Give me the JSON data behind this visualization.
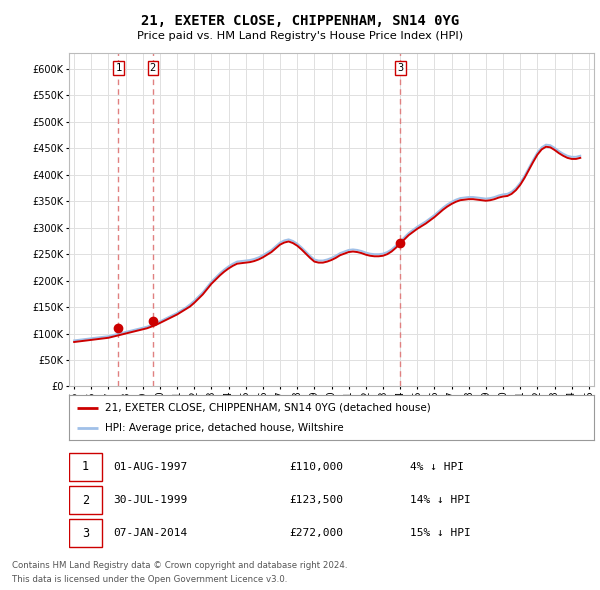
{
  "title": "21, EXETER CLOSE, CHIPPENHAM, SN14 0YG",
  "subtitle": "Price paid vs. HM Land Registry's House Price Index (HPI)",
  "legend_line1": "21, EXETER CLOSE, CHIPPENHAM, SN14 0YG (detached house)",
  "legend_line2": "HPI: Average price, detached house, Wiltshire",
  "footer1": "Contains HM Land Registry data © Crown copyright and database right 2024.",
  "footer2": "This data is licensed under the Open Government Licence v3.0.",
  "transactions": [
    {
      "num": 1,
      "date": "01-AUG-1997",
      "price": 110000,
      "pct": "4%",
      "dir": "↓",
      "year": 1997.58
    },
    {
      "num": 2,
      "date": "30-JUL-1999",
      "price": 123500,
      "pct": "14%",
      "dir": "↓",
      "year": 1999.58
    },
    {
      "num": 3,
      "date": "07-JAN-2014",
      "price": 272000,
      "pct": "15%",
      "dir": "↓",
      "year": 2014.02
    }
  ],
  "hpi_color": "#a0c0e8",
  "price_color": "#cc0000",
  "dashed_color": "#e08080",
  "background_color": "#ffffff",
  "grid_color": "#e0e0e0",
  "ylim": [
    0,
    630000
  ],
  "yticks": [
    0,
    50000,
    100000,
    150000,
    200000,
    250000,
    300000,
    350000,
    400000,
    450000,
    500000,
    550000,
    600000
  ],
  "hpi_data_years": [
    1995.0,
    1995.25,
    1995.5,
    1995.75,
    1996.0,
    1996.25,
    1996.5,
    1996.75,
    1997.0,
    1997.25,
    1997.5,
    1997.75,
    1998.0,
    1998.25,
    1998.5,
    1998.75,
    1999.0,
    1999.25,
    1999.5,
    1999.75,
    2000.0,
    2000.25,
    2000.5,
    2000.75,
    2001.0,
    2001.25,
    2001.5,
    2001.75,
    2002.0,
    2002.25,
    2002.5,
    2002.75,
    2003.0,
    2003.25,
    2003.5,
    2003.75,
    2004.0,
    2004.25,
    2004.5,
    2004.75,
    2005.0,
    2005.25,
    2005.5,
    2005.75,
    2006.0,
    2006.25,
    2006.5,
    2006.75,
    2007.0,
    2007.25,
    2007.5,
    2007.75,
    2008.0,
    2008.25,
    2008.5,
    2008.75,
    2009.0,
    2009.25,
    2009.5,
    2009.75,
    2010.0,
    2010.25,
    2010.5,
    2010.75,
    2011.0,
    2011.25,
    2011.5,
    2011.75,
    2012.0,
    2012.25,
    2012.5,
    2012.75,
    2013.0,
    2013.25,
    2013.5,
    2013.75,
    2014.0,
    2014.25,
    2014.5,
    2014.75,
    2015.0,
    2015.25,
    2015.5,
    2015.75,
    2016.0,
    2016.25,
    2016.5,
    2016.75,
    2017.0,
    2017.25,
    2017.5,
    2017.75,
    2018.0,
    2018.25,
    2018.5,
    2018.75,
    2019.0,
    2019.25,
    2019.5,
    2019.75,
    2020.0,
    2020.25,
    2020.5,
    2020.75,
    2021.0,
    2021.25,
    2021.5,
    2021.75,
    2022.0,
    2022.25,
    2022.5,
    2022.75,
    2023.0,
    2023.25,
    2023.5,
    2023.75,
    2024.0,
    2024.25,
    2024.5
  ],
  "hpi_data_values": [
    87000,
    88000,
    89000,
    90000,
    91000,
    92000,
    93000,
    94000,
    95000,
    97000,
    99000,
    101000,
    103000,
    105000,
    107000,
    109000,
    111000,
    113000,
    116000,
    119000,
    123000,
    127000,
    131000,
    135000,
    139000,
    144000,
    149000,
    155000,
    162000,
    170000,
    178000,
    188000,
    198000,
    206000,
    214000,
    221000,
    227000,
    232000,
    236000,
    237000,
    238000,
    239000,
    241000,
    244000,
    248000,
    253000,
    258000,
    265000,
    272000,
    276000,
    278000,
    275000,
    270000,
    263000,
    255000,
    247000,
    240000,
    238000,
    238000,
    240000,
    243000,
    247000,
    252000,
    255000,
    258000,
    259000,
    258000,
    256000,
    253000,
    251000,
    250000,
    250000,
    251000,
    254000,
    259000,
    266000,
    274000,
    282000,
    290000,
    296000,
    302000,
    307000,
    312000,
    318000,
    324000,
    331000,
    338000,
    344000,
    349000,
    353000,
    356000,
    357000,
    358000,
    358000,
    357000,
    356000,
    355000,
    356000,
    358000,
    361000,
    363000,
    364000,
    368000,
    375000,
    385000,
    398000,
    413000,
    428000,
    442000,
    452000,
    457000,
    456000,
    451000,
    445000,
    440000,
    436000,
    434000,
    434000,
    436000
  ],
  "price_line_years": [
    1995.0,
    1995.25,
    1995.5,
    1995.75,
    1996.0,
    1996.25,
    1996.5,
    1996.75,
    1997.0,
    1997.25,
    1997.5,
    1997.75,
    1998.0,
    1998.25,
    1998.5,
    1998.75,
    1999.0,
    1999.25,
    1999.5,
    1999.75,
    2000.0,
    2000.25,
    2000.5,
    2000.75,
    2001.0,
    2001.25,
    2001.5,
    2001.75,
    2002.0,
    2002.25,
    2002.5,
    2002.75,
    2003.0,
    2003.25,
    2003.5,
    2003.75,
    2004.0,
    2004.25,
    2004.5,
    2004.75,
    2005.0,
    2005.25,
    2005.5,
    2005.75,
    2006.0,
    2006.25,
    2006.5,
    2006.75,
    2007.0,
    2007.25,
    2007.5,
    2007.75,
    2008.0,
    2008.25,
    2008.5,
    2008.75,
    2009.0,
    2009.25,
    2009.5,
    2009.75,
    2010.0,
    2010.25,
    2010.5,
    2010.75,
    2011.0,
    2011.25,
    2011.5,
    2011.75,
    2012.0,
    2012.25,
    2012.5,
    2012.75,
    2013.0,
    2013.25,
    2013.5,
    2013.75,
    2014.0,
    2014.25,
    2014.5,
    2014.75,
    2015.0,
    2015.25,
    2015.5,
    2015.75,
    2016.0,
    2016.25,
    2016.5,
    2016.75,
    2017.0,
    2017.25,
    2017.5,
    2017.75,
    2018.0,
    2018.25,
    2018.5,
    2018.75,
    2019.0,
    2019.25,
    2019.5,
    2019.75,
    2020.0,
    2020.25,
    2020.5,
    2020.75,
    2021.0,
    2021.25,
    2021.5,
    2021.75,
    2022.0,
    2022.25,
    2022.5,
    2022.75,
    2023.0,
    2023.25,
    2023.5,
    2023.75,
    2024.0,
    2024.25,
    2024.5
  ],
  "price_line_values": [
    84000,
    85000,
    86000,
    87000,
    88000,
    89000,
    90000,
    91000,
    92000,
    94000,
    96000,
    98000,
    100000,
    102000,
    104000,
    106000,
    108000,
    110000,
    113000,
    116000,
    120000,
    124000,
    128000,
    132000,
    136000,
    141000,
    146000,
    151000,
    158000,
    166000,
    174000,
    184000,
    194000,
    202000,
    210000,
    217000,
    223000,
    228000,
    232000,
    233000,
    234000,
    235000,
    237000,
    240000,
    244000,
    249000,
    254000,
    261000,
    268000,
    272000,
    274000,
    271000,
    266000,
    259000,
    251000,
    243000,
    236000,
    234000,
    234000,
    236000,
    239000,
    243000,
    248000,
    251000,
    254000,
    255000,
    254000,
    252000,
    249000,
    247000,
    246000,
    246000,
    247000,
    250000,
    255000,
    262000,
    270000,
    278000,
    286000,
    292000,
    298000,
    303000,
    308000,
    314000,
    320000,
    327000,
    334000,
    340000,
    345000,
    349000,
    352000,
    353000,
    354000,
    354000,
    353000,
    352000,
    351000,
    352000,
    354000,
    357000,
    359000,
    360000,
    364000,
    371000,
    381000,
    394000,
    409000,
    424000,
    438000,
    448000,
    453000,
    452000,
    447000,
    441000,
    436000,
    432000,
    430000,
    430000,
    432000
  ]
}
